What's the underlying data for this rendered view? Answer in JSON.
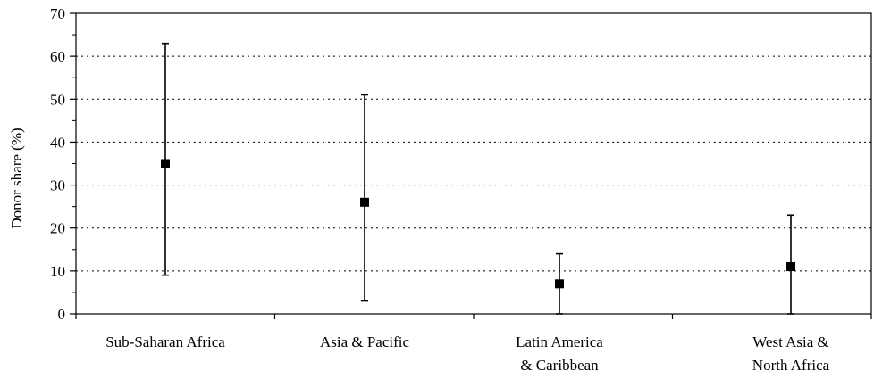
{
  "chart_data": {
    "type": "scatter",
    "title": "",
    "xlabel": "",
    "ylabel": "Donor share (%)",
    "ylim": [
      0,
      70
    ],
    "yticks": [
      0,
      10,
      20,
      30,
      40,
      50,
      60,
      70
    ],
    "grid": "horizontal dotted",
    "categories": [
      [
        "Sub-Saharan Africa"
      ],
      [
        "Asia & Pacific"
      ],
      [
        "Latin America",
        "& Caribbean"
      ],
      [
        "West Asia &",
        "North Africa"
      ]
    ],
    "series": [
      {
        "values": [
          35,
          26,
          7,
          11
        ],
        "error_low": [
          9,
          3,
          0,
          0
        ],
        "error_high": [
          63,
          51,
          14,
          23
        ]
      }
    ],
    "colors": {
      "marker": "#000000",
      "grid": "#000000",
      "axis": "#000000"
    }
  }
}
